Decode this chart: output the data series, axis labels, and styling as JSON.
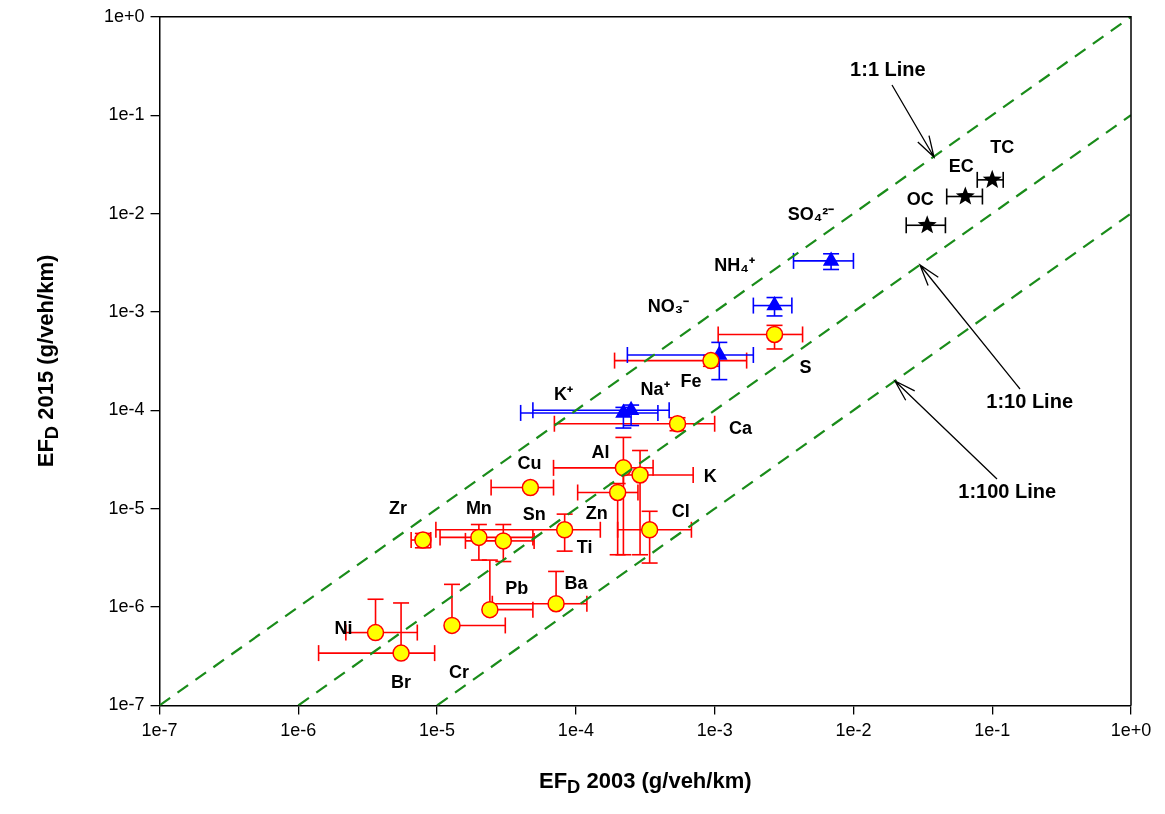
{
  "chart_data": {
    "type": "scatter",
    "xlabel": "EF$_{D}$ 2003 (g/veh/km)",
    "ylabel": "EF$_{D}$ 2015 (g/veh/km)",
    "log": "xy",
    "grid": false,
    "legend": false,
    "xlim": [
      1e-07,
      1
    ],
    "ylim": [
      1e-07,
      1
    ],
    "xticks": [
      {
        "value": 1e-07,
        "label": "1e-7"
      },
      {
        "value": 1e-06,
        "label": "1e-6"
      },
      {
        "value": 1e-05,
        "label": "1e-5"
      },
      {
        "value": 0.0001,
        "label": "1e-4"
      },
      {
        "value": 0.001,
        "label": "1e-3"
      },
      {
        "value": 0.01,
        "label": "1e-2"
      },
      {
        "value": 0.1,
        "label": "1e-1"
      },
      {
        "value": 1,
        "label": "1e+0"
      }
    ],
    "yticks": [
      {
        "value": 1e-07,
        "label": "1e-7"
      },
      {
        "value": 1e-06,
        "label": "1e-6"
      },
      {
        "value": 1e-05,
        "label": "1e-5"
      },
      {
        "value": 0.0001,
        "label": "1e-4"
      },
      {
        "value": 0.001,
        "label": "1e-3"
      },
      {
        "value": 0.01,
        "label": "1e-2"
      },
      {
        "value": 0.1,
        "label": "1e-1"
      },
      {
        "value": 1,
        "label": "1e+0"
      }
    ],
    "series": [
      {
        "type": "line",
        "color": "#1a8c1a",
        "line_style": "dashed",
        "marker": "none",
        "x": [
          1e-07,
          1
        ],
        "values": [
          1e-07,
          1
        ]
      },
      {
        "type": "line",
        "color": "#1a8c1a",
        "line_style": "dashed",
        "marker": "none",
        "x": [
          1e-06,
          1
        ],
        "values": [
          1e-07,
          0.1
        ]
      },
      {
        "type": "line",
        "color": "#1a8c1a",
        "line_style": "dashed",
        "marker": "none",
        "x": [
          1e-05,
          1
        ],
        "values": [
          1e-07,
          0.01
        ]
      },
      {
        "type": "scatter",
        "marker": "circle",
        "color": "#ff0000",
        "colors": [
          "#ffff00",
          "#ffff00",
          "#ffff00",
          "#ffff00",
          "#ffff00",
          "#ffff00",
          "#ffff00",
          "#ffff00",
          "#ffff00",
          "#ffff00",
          "#ffff00",
          "#ffff00",
          "#ffff00",
          "#ffff00",
          "#ffff00",
          "#ffff00",
          "#ffff00"
        ],
        "x": [
          3.6e-06,
          5.5e-06,
          1.28e-05,
          2.4e-05,
          7.2e-05,
          7.9e-06,
          2e-05,
          3e-05,
          8.3e-05,
          4.7e-05,
          0.00022,
          0.00029,
          0.0002,
          0.00034,
          0.00054,
          0.00094,
          0.0027
        ],
        "values": [
          5.5e-07,
          3.4e-07,
          6.5e-07,
          9.4e-07,
          1.08e-06,
          4.8e-06,
          5.1e-06,
          4.7e-06,
          6.1e-06,
          1.64e-05,
          2.6e-05,
          2.2e-05,
          1.46e-05,
          6.1e-06,
          7.3e-05,
          0.00032,
          0.00059
        ],
        "errors": [
          [
            5.5e-07,
            1.2e-06
          ],
          [
            3.4e-07,
            1.1e-06
          ],
          [
            6.5e-07,
            1.7e-06
          ],
          [
            9.4e-07,
            3e-06
          ],
          [
            1.08e-06,
            2.3e-06
          ],
          [
            4e-06,
            5.6e-06
          ],
          [
            3e-06,
            6.9e-06
          ],
          [
            2.9e-06,
            6.9e-06
          ],
          [
            3.7e-06,
            8.8e-06
          ],
          null,
          [
            3.4e-06,
            5.3e-05
          ],
          [
            3.4e-06,
            3.9e-05
          ],
          [
            3.4e-06,
            1.8e-05
          ],
          [
            2.8e-06,
            9.4e-06
          ],
          [
            6.2e-05,
            8.4e-05
          ],
          [
            0.00028,
            0.00036
          ],
          [
            0.00042,
            0.00073
          ]
        ],
        "xerrors": [
          [
            2.2e-06,
            7.2e-06
          ],
          [
            1.4e-06,
            9.6e-06
          ],
          [
            1.28e-05,
            3.1e-05
          ],
          [
            2.4e-05,
            4.9e-05
          ],
          [
            2.5e-05,
            0.00012
          ],
          [
            6.5e-06,
            9e-06
          ],
          [
            1.05e-05,
            4.9e-05
          ],
          [
            1.6e-05,
            5e-05
          ],
          [
            9.8e-06,
            0.00015
          ],
          [
            2.45e-05,
            6.9e-05
          ],
          [
            6.9e-05,
            0.00036
          ],
          [
            0.00022,
            0.0007
          ],
          [
            0.000103,
            0.00028
          ],
          [
            0.0002,
            0.00068
          ],
          [
            7e-05,
            0.001
          ],
          [
            0.00019,
            0.0017
          ],
          [
            0.00106,
            0.0043
          ]
        ]
      },
      {
        "type": "scatter",
        "marker": "triangle",
        "color": "#0000ff",
        "x": [
          0.00022,
          0.00025,
          0.00108,
          0.0027,
          0.0069
        ],
        "values": [
          9.4e-05,
          0.0001,
          0.000365,
          0.00116,
          0.0033
        ],
        "errors": [
          [
            6.6e-05,
            0.000107
          ],
          [
            7e-05,
            0.000113
          ],
          [
            0.000205,
            0.00049
          ],
          [
            0.00091,
            0.0014
          ],
          [
            0.0027,
            0.0039
          ]
        ],
        "xerrors": [
          [
            4e-05,
            0.00039
          ],
          [
            4.9e-05,
            0.00047
          ],
          [
            0.000235,
            0.0019
          ],
          [
            0.0019,
            0.0036
          ],
          [
            0.0037,
            0.01
          ]
        ]
      },
      {
        "type": "scatter",
        "marker": "star",
        "color": "#000000",
        "x": [
          0.034,
          0.064,
          0.1
        ],
        "values": [
          0.0076,
          0.0149,
          0.022
        ],
        "xerrors": [
          [
            0.024,
            0.046
          ],
          [
            0.047,
            0.085
          ],
          [
            0.078,
            0.12
          ]
        ]
      }
    ],
    "annotations": [
      {
        "text": "1:1 Line",
        "x": 0.038,
        "y": 0.038
      },
      {
        "text": "1:10 Line",
        "x": 0.03,
        "y": 0.003
      },
      {
        "text": "1:100 Line",
        "x": 0.02,
        "y": 0.0002
      },
      {
        "text": "Ni",
        "x": 3.6e-06,
        "y": 5.5e-07
      },
      {
        "text": "Br",
        "x": 5.5e-06,
        "y": 3.4e-07
      },
      {
        "text": "Cr",
        "x": 1.28e-05,
        "y": 6.5e-07
      },
      {
        "text": "Pb",
        "x": 2.4e-05,
        "y": 9.4e-07
      },
      {
        "text": "Ba",
        "x": 7.2e-05,
        "y": 1.08e-06
      },
      {
        "text": "Zr",
        "x": 7.9e-06,
        "y": 4.8e-06
      },
      {
        "text": "Mn",
        "x": 2e-05,
        "y": 5.1e-06
      },
      {
        "text": "Sn",
        "x": 3e-05,
        "y": 4.7e-06
      },
      {
        "text": "Ti",
        "x": 8.3e-05,
        "y": 6.1e-06
      },
      {
        "text": "Zn",
        "x": 0.0002,
        "y": 1.46e-05
      },
      {
        "text": "Cu",
        "x": 4.7e-05,
        "y": 1.64e-05
      },
      {
        "text": "Al",
        "x": 0.00022,
        "y": 2.6e-05
      },
      {
        "text": "K",
        "x": 0.0007,
        "y": 2.2e-05
      },
      {
        "text": "Cl",
        "x": 0.00034,
        "y": 6.1e-06
      },
      {
        "text": "Ca",
        "x": 0.00054,
        "y": 7.3e-05
      },
      {
        "text": "S",
        "x": 0.0027,
        "y": 0.00059
      },
      {
        "text": "Fe",
        "x": 0.00094,
        "y": 0.00032
      },
      {
        "text": "Na⁺",
        "x": 0.00025,
        "y": 0.0001
      },
      {
        "text": "K⁺",
        "x": 0.00022,
        "y": 9.4e-05
      },
      {
        "text": "NO₃⁻",
        "x": 0.00108,
        "y": 0.000365
      },
      {
        "text": "NH₄⁺",
        "x": 0.0027,
        "y": 0.00116
      },
      {
        "text": "SO₄²⁻",
        "x": 0.0069,
        "y": 0.0033
      },
      {
        "text": "OC",
        "x": 0.034,
        "y": 0.0076
      },
      {
        "text": "EC",
        "x": 0.064,
        "y": 0.0149
      },
      {
        "text": "TC",
        "x": 0.1,
        "y": 0.022
      }
    ]
  }
}
